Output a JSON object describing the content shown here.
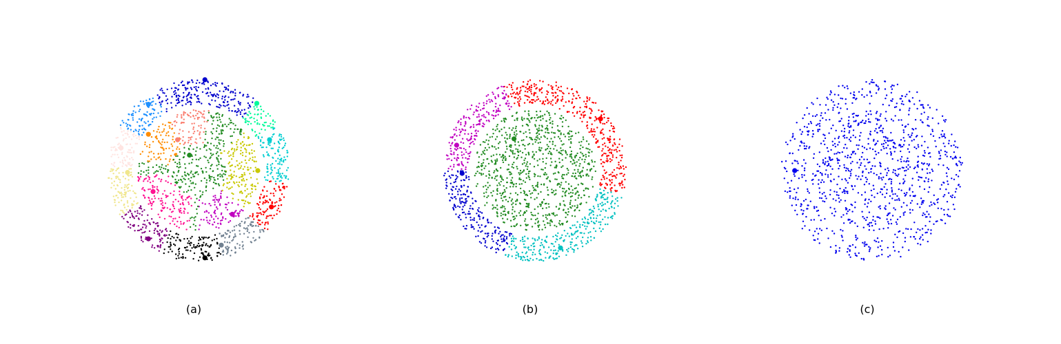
{
  "chart_data": [
    {
      "type": "scatter",
      "label": "(a)",
      "axes_visible": false,
      "xlim": [
        -1.05,
        1.05
      ],
      "ylim": [
        -1.05,
        1.05
      ],
      "clusters": [
        {
          "color": "#0000cd",
          "region": "ring",
          "a0": 50,
          "a1": 120,
          "center": [
            0.07,
            1.0
          ]
        },
        {
          "color": "#1e90ff",
          "region": "ring",
          "a0": 120,
          "a1": 150,
          "center": [
            -0.55,
            0.73
          ]
        },
        {
          "color": "#ffe4e1",
          "region": "ring",
          "a0": 150,
          "a1": 178,
          "center": [
            -0.85,
            0.25
          ]
        },
        {
          "color": "#f0e68c",
          "region": "ring",
          "a0": 178,
          "a1": 210,
          "center": [
            -0.78,
            -0.02
          ]
        },
        {
          "color": "#800080",
          "region": "ring",
          "a0": 210,
          "a1": 245,
          "center": [
            -0.55,
            -0.75
          ]
        },
        {
          "color": "#000000",
          "region": "ring",
          "a0": 245,
          "a1": 285,
          "center": [
            0.07,
            -0.96
          ]
        },
        {
          "color": "#708090",
          "region": "ring",
          "a0": 285,
          "a1": 318,
          "center": [
            0.25,
            -0.82
          ]
        },
        {
          "color": "#ff0000",
          "region": "ring",
          "a0": 318,
          "a1": 352,
          "center": [
            0.8,
            -0.4
          ]
        },
        {
          "color": "#00ced1",
          "region": "ring",
          "a0": 352,
          "a1": 30,
          "center": [
            0.78,
            0.34
          ]
        },
        {
          "color": "#00fa9a",
          "region": "ring",
          "a0": 30,
          "a1": 50,
          "center": [
            0.64,
            0.74
          ]
        },
        {
          "color": "#ff8c00",
          "region": "inner",
          "a0": 120,
          "a1": 170,
          "center": [
            -0.55,
            0.4
          ]
        },
        {
          "color": "#fa8072",
          "region": "inner",
          "a0": 80,
          "a1": 120,
          "center": [
            -0.23,
            0.34
          ]
        },
        {
          "color": "#228b22",
          "region": "inner",
          "a0": 0,
          "a1": 0,
          "center": [
            -0.1,
            0.17
          ]
        },
        {
          "color": "#c8c800",
          "region": "inner",
          "a0": -40,
          "a1": 40,
          "center": [
            0.65,
            0.0
          ]
        },
        {
          "color": "#ff1493",
          "region": "inner",
          "a0": 185,
          "a1": 260,
          "center": [
            -0.5,
            -0.23
          ]
        },
        {
          "color": "#c000c0",
          "region": "inner",
          "a0": 270,
          "a1": 320,
          "center": [
            0.37,
            -0.48
          ]
        }
      ]
    },
    {
      "type": "scatter",
      "label": "(b)",
      "axes_visible": false,
      "xlim": [
        -1.05,
        1.05
      ],
      "ylim": [
        -1.05,
        1.05
      ],
      "clusters": [
        {
          "color": "#ff0000",
          "region": "ring",
          "a0": 345,
          "a1": 110,
          "center": [
            0.72,
            0.57
          ]
        },
        {
          "color": "#c000c0",
          "region": "ring",
          "a0": 110,
          "a1": 180,
          "center": [
            -0.86,
            0.28
          ]
        },
        {
          "color": "#0000cd",
          "region": "ring",
          "a0": 180,
          "a1": 250,
          "center": [
            -0.8,
            -0.03
          ]
        },
        {
          "color": "#00c0c0",
          "region": "ring",
          "a0": 250,
          "a1": 345,
          "center": [
            0.28,
            -0.85
          ]
        },
        {
          "color": "#228b22",
          "region": "inner",
          "a0": 0,
          "a1": 0,
          "center": [
            -0.23,
            0.35
          ]
        }
      ]
    },
    {
      "type": "scatter",
      "label": "(c)",
      "axes_visible": false,
      "xlim": [
        -1.05,
        1.05
      ],
      "ylim": [
        -1.05,
        1.05
      ],
      "clusters": [
        {
          "color": "#0000ee",
          "region": "all",
          "a0": 0,
          "a1": 0,
          "center": [
            -0.85,
            0.0
          ]
        }
      ]
    }
  ]
}
